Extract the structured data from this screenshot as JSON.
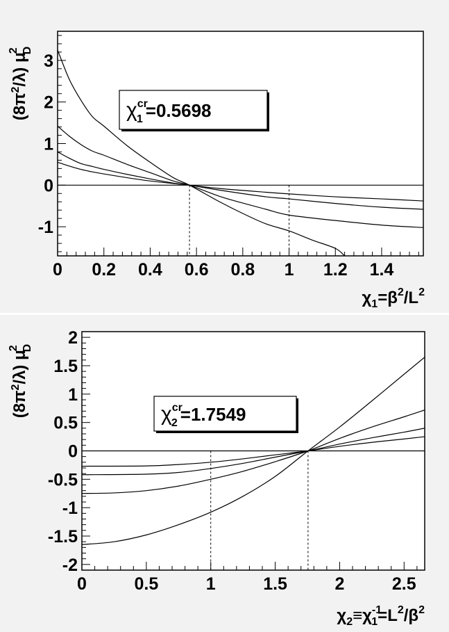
{
  "chart_data": [
    {
      "type": "line",
      "ylabel": "(8π²/λ) μ_D²",
      "xlabel": "χ₁=β²/L²",
      "xlim": [
        0,
        1.58
      ],
      "ylim": [
        -1.7,
        3.7
      ],
      "x_ticks": [
        0,
        0.2,
        0.4,
        0.6,
        0.8,
        1,
        1.2,
        1.4
      ],
      "x_tick_labels": [
        "0",
        "0.2",
        "0.4",
        "0.6",
        "0.8",
        "1",
        "1.2",
        "1.4"
      ],
      "y_ticks": [
        -1,
        0,
        1,
        2,
        3
      ],
      "y_tick_labels": [
        "-1",
        "0",
        "1",
        "2",
        "3"
      ],
      "annotation": {
        "sym": "χ",
        "sup": "cr",
        "sub": "1",
        "value": "=0.5698"
      },
      "critical_x": 0.5698,
      "marker_x": 1,
      "series": [
        {
          "values": [
            [
              0,
              3.25
            ],
            [
              0.05,
              2.55
            ],
            [
              0.1,
              2.05
            ],
            [
              0.15,
              1.65
            ],
            [
              0.2,
              1.42
            ],
            [
              0.3,
              0.95
            ],
            [
              0.4,
              0.55
            ],
            [
              0.5,
              0.18
            ],
            [
              0.5698,
              0
            ],
            [
              0.7,
              -0.4
            ],
            [
              0.8,
              -0.68
            ],
            [
              0.9,
              -0.93
            ],
            [
              1.0,
              -1.1
            ],
            [
              1.1,
              -1.32
            ],
            [
              1.2,
              -1.52
            ],
            [
              1.24,
              -1.7
            ]
          ]
        },
        {
          "values": [
            [
              0,
              1.42
            ],
            [
              0.05,
              1.18
            ],
            [
              0.1,
              0.98
            ],
            [
              0.15,
              0.82
            ],
            [
              0.2,
              0.72
            ],
            [
              0.3,
              0.5
            ],
            [
              0.4,
              0.3
            ],
            [
              0.5,
              0.1
            ],
            [
              0.5698,
              0
            ],
            [
              0.7,
              -0.27
            ],
            [
              0.8,
              -0.43
            ],
            [
              0.9,
              -0.58
            ],
            [
              1.0,
              -0.72
            ],
            [
              1.2,
              -0.85
            ],
            [
              1.4,
              -0.96
            ],
            [
              1.58,
              -1.02
            ]
          ]
        },
        {
          "values": [
            [
              0,
              0.8
            ],
            [
              0.05,
              0.65
            ],
            [
              0.1,
              0.52
            ],
            [
              0.15,
              0.45
            ],
            [
              0.2,
              0.38
            ],
            [
              0.3,
              0.26
            ],
            [
              0.4,
              0.15
            ],
            [
              0.5,
              0.05
            ],
            [
              0.5698,
              0
            ],
            [
              0.7,
              -0.12
            ],
            [
              0.9,
              -0.28
            ],
            [
              1.0,
              -0.33
            ],
            [
              1.2,
              -0.44
            ],
            [
              1.4,
              -0.53
            ],
            [
              1.58,
              -0.58
            ]
          ]
        },
        {
          "values": [
            [
              0,
              0.55
            ],
            [
              0.05,
              0.46
            ],
            [
              0.1,
              0.38
            ],
            [
              0.15,
              0.32
            ],
            [
              0.2,
              0.27
            ],
            [
              0.3,
              0.18
            ],
            [
              0.4,
              0.1
            ],
            [
              0.5,
              0.04
            ],
            [
              0.5698,
              0
            ],
            [
              0.7,
              -0.08
            ],
            [
              0.9,
              -0.17
            ],
            [
              1.0,
              -0.21
            ],
            [
              1.2,
              -0.28
            ],
            [
              1.4,
              -0.33
            ],
            [
              1.58,
              -0.38
            ]
          ]
        },
        {
          "values": [
            [
              0,
              0
            ],
            [
              1.58,
              0
            ]
          ]
        }
      ]
    },
    {
      "type": "line",
      "ylabel": "(8π²/λ) μ_D²",
      "xlabel": "χ₂≡χ₁⁻¹=L²/β²",
      "xlim": [
        0,
        2.66
      ],
      "ylim": [
        -2.1,
        2.1
      ],
      "x_ticks": [
        0,
        0.5,
        1,
        1.5,
        2,
        2.5
      ],
      "x_tick_labels": [
        "0",
        "0.5",
        "1",
        "1.5",
        "2",
        "2.5"
      ],
      "y_ticks": [
        -2,
        -1.5,
        -1,
        -0.5,
        0,
        0.5,
        1,
        1.5,
        2
      ],
      "y_tick_labels": [
        "-2",
        "-1.5",
        "-1",
        "-0.5",
        "0",
        "0.5",
        "1",
        "1.5",
        "2"
      ],
      "annotation": {
        "sym": "χ",
        "sup": "cr",
        "sub": "2",
        "value": "=1.7549"
      },
      "critical_x": 1.7549,
      "marker_x": 1,
      "series": [
        {
          "values": [
            [
              0,
              -1.65
            ],
            [
              0.25,
              -1.6
            ],
            [
              0.5,
              -1.48
            ],
            [
              0.75,
              -1.3
            ],
            [
              1.0,
              -1.08
            ],
            [
              1.25,
              -0.8
            ],
            [
              1.5,
              -0.45
            ],
            [
              1.7549,
              0
            ],
            [
              2.0,
              0.42
            ],
            [
              2.25,
              0.88
            ],
            [
              2.5,
              1.35
            ],
            [
              2.66,
              1.65
            ]
          ]
        },
        {
          "values": [
            [
              0,
              -0.75
            ],
            [
              0.25,
              -0.74
            ],
            [
              0.5,
              -0.7
            ],
            [
              0.75,
              -0.62
            ],
            [
              1.0,
              -0.5
            ],
            [
              1.25,
              -0.36
            ],
            [
              1.5,
              -0.19
            ],
            [
              1.7549,
              0
            ],
            [
              2.0,
              0.22
            ],
            [
              2.25,
              0.42
            ],
            [
              2.5,
              0.6
            ],
            [
              2.66,
              0.72
            ]
          ]
        },
        {
          "values": [
            [
              0,
              -0.42
            ],
            [
              0.5,
              -0.41
            ],
            [
              0.75,
              -0.38
            ],
            [
              1.0,
              -0.31
            ],
            [
              1.25,
              -0.22
            ],
            [
              1.5,
              -0.11
            ],
            [
              1.7549,
              0
            ],
            [
              2.0,
              0.12
            ],
            [
              2.25,
              0.23
            ],
            [
              2.5,
              0.33
            ],
            [
              2.66,
              0.4
            ]
          ]
        },
        {
          "values": [
            [
              0,
              -0.27
            ],
            [
              0.5,
              -0.265
            ],
            [
              0.75,
              -0.24
            ],
            [
              1.0,
              -0.2
            ],
            [
              1.25,
              -0.14
            ],
            [
              1.5,
              -0.07
            ],
            [
              1.7549,
              0
            ],
            [
              2.0,
              0.08
            ],
            [
              2.25,
              0.15
            ],
            [
              2.5,
              0.21
            ],
            [
              2.66,
              0.25
            ]
          ]
        },
        {
          "values": [
            [
              0,
              0
            ],
            [
              2.66,
              0
            ]
          ]
        }
      ]
    }
  ]
}
